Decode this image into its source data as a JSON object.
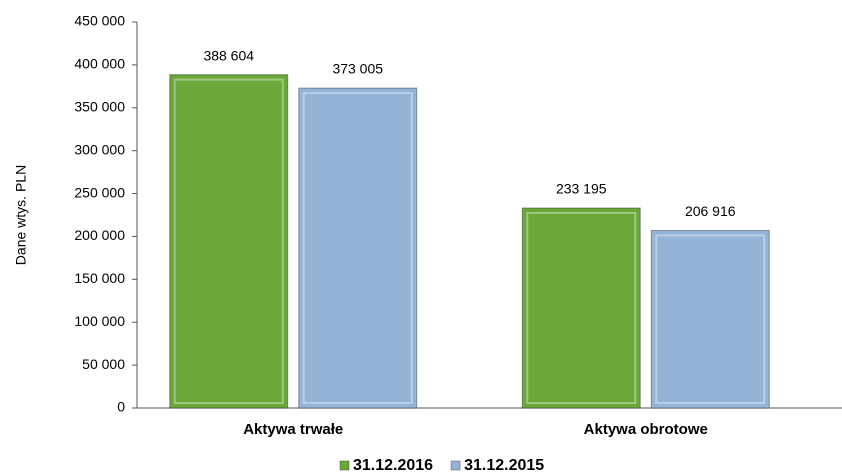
{
  "chart_data": {
    "type": "bar",
    "y_axis_label": "Dane wtys. PLN",
    "categories": [
      "Aktywa trwałe",
      "Aktywa obrotowe"
    ],
    "series": [
      {
        "name": "31.12.2016",
        "color": "#6aa83a",
        "values": [
          388604,
          233195
        ],
        "value_labels": [
          "388 604",
          "233 195"
        ]
      },
      {
        "name": "31.12.2015",
        "color": "#95b3d7",
        "values": [
          373005,
          206916
        ],
        "value_labels": [
          "373 005",
          "206 916"
        ]
      }
    ],
    "ylim": [
      0,
      450000
    ],
    "yticks": [
      0,
      {
        "value": 50000,
        "label": "50 000"
      },
      {
        "value": 100000,
        "label": "100 000"
      },
      {
        "value": 150000,
        "label": "150 000"
      },
      {
        "value": 200000,
        "label": "200 000"
      },
      {
        "value": 250000,
        "label": "250 000"
      },
      {
        "value": 300000,
        "label": "300 000"
      },
      {
        "value": 350000,
        "label": "350 000"
      },
      {
        "value": 400000,
        "label": "400 000"
      },
      {
        "value": 450000,
        "label": "450 000"
      }
    ],
    "legend": "bottom"
  }
}
